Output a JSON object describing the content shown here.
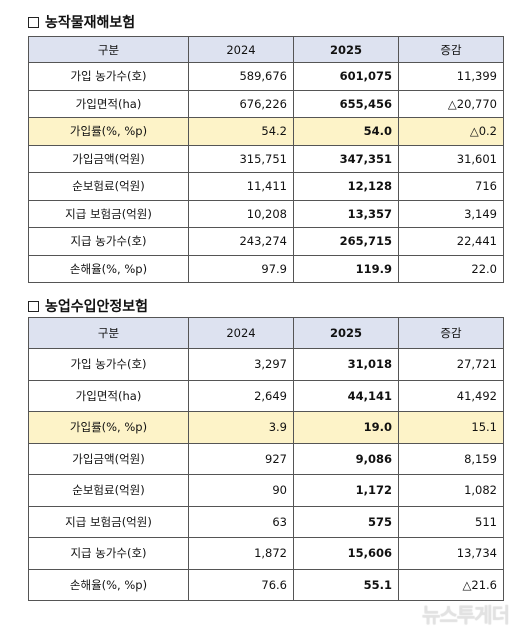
{
  "sections": [
    {
      "title": "농작물재해보험",
      "headers": [
        "구분",
        "2024",
        "2025",
        "증감"
      ],
      "rows": [
        {
          "label": "가입 농가수(호)",
          "y2024": "589,676",
          "y2025": "601,075",
          "change": "11,399"
        },
        {
          "label": "가입면적(ha)",
          "y2024": "676,226",
          "y2025": "655,456",
          "change": "△20,770"
        },
        {
          "label": "가입률(%, %p)",
          "y2024": "54.2",
          "y2025": "54.0",
          "change": "△0.2"
        },
        {
          "label": "가입금액(억원)",
          "y2024": "315,751",
          "y2025": "347,351",
          "change": "31,601"
        },
        {
          "label": "순보험료(억원)",
          "y2024": "11,411",
          "y2025": "12,128",
          "change": "716"
        },
        {
          "label": "지급 보험금(억원)",
          "y2024": "10,208",
          "y2025": "13,357",
          "change": "3,149"
        },
        {
          "label": "지급 농가수(호)",
          "y2024": "243,274",
          "y2025": "265,715",
          "change": "22,441"
        },
        {
          "label": "손해율(%, %p)",
          "y2024": "97.9",
          "y2025": "119.9",
          "change": "22.0"
        }
      ]
    },
    {
      "title": "농업수입안정보험",
      "headers": [
        "구분",
        "2024",
        "2025",
        "증감"
      ],
      "rows": [
        {
          "label": "가입 농가수(호)",
          "y2024": "3,297",
          "y2025": "31,018",
          "change": "27,721"
        },
        {
          "label": "가입면적(ha)",
          "y2024": "2,649",
          "y2025": "44,141",
          "change": "41,492"
        },
        {
          "label": "가입률(%, %p)",
          "y2024": "3.9",
          "y2025": "19.0",
          "change": "15.1"
        },
        {
          "label": "가입금액(억원)",
          "y2024": "927",
          "y2025": "9,086",
          "change": "8,159"
        },
        {
          "label": "순보험료(억원)",
          "y2024": "90",
          "y2025": "1,172",
          "change": "1,082"
        },
        {
          "label": "지급 보험금(억원)",
          "y2024": "63",
          "y2025": "575",
          "change": "511"
        },
        {
          "label": "지급 농가수(호)",
          "y2024": "1,872",
          "y2025": "15,606",
          "change": "13,734"
        },
        {
          "label": "손해율(%, %p)",
          "y2024": "76.6",
          "y2025": "55.1",
          "change": "△21.6"
        }
      ]
    }
  ],
  "highlight_row_color": "#fdf3c8",
  "header_color": "#dde2f0",
  "watermark": "뉴스투게더"
}
